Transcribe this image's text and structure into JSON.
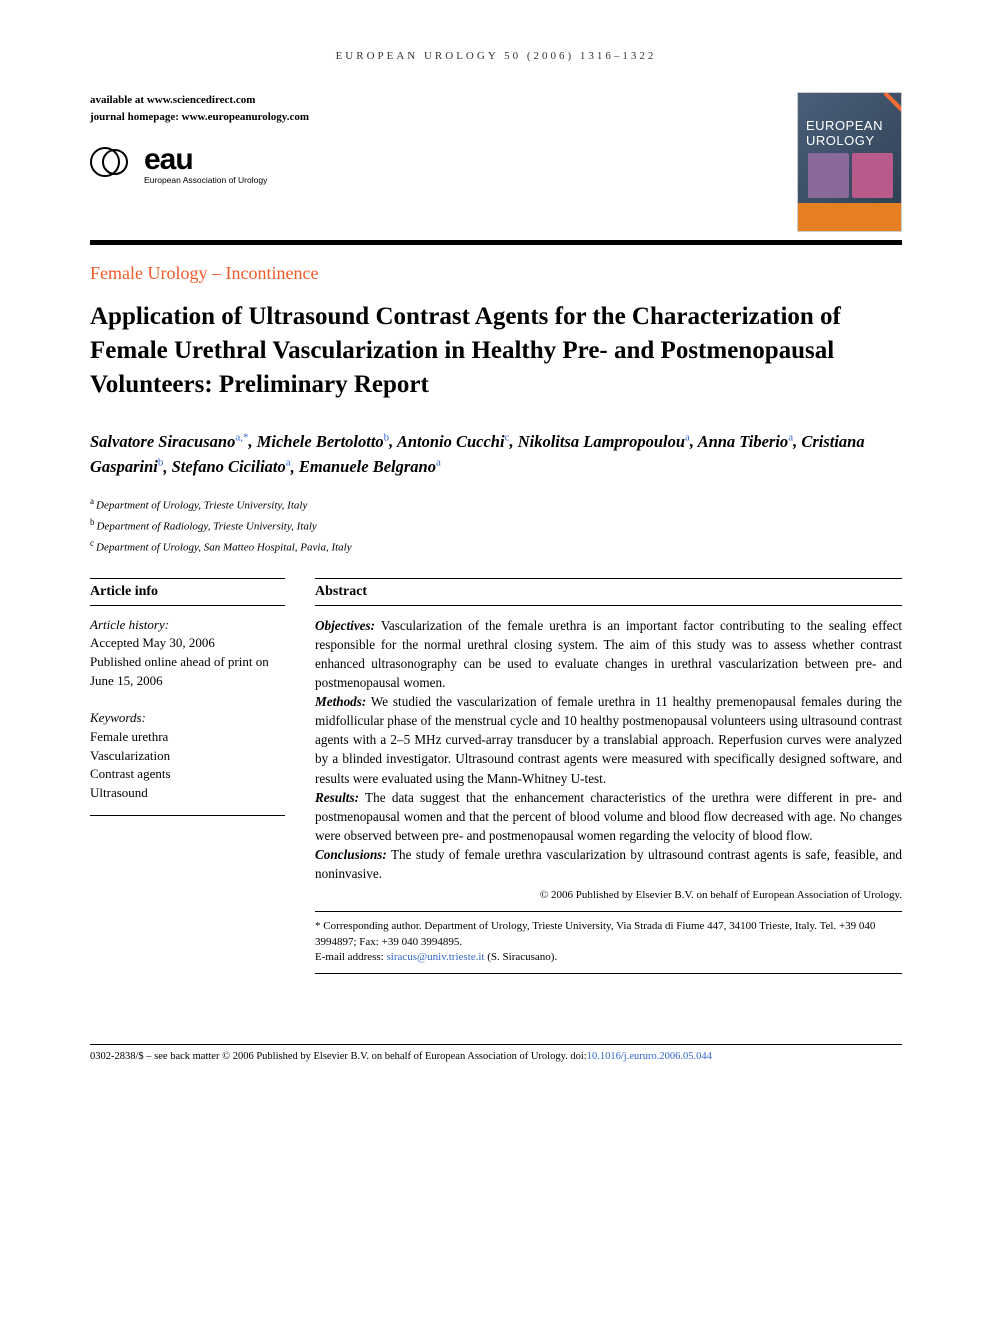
{
  "header": {
    "citation": "EUROPEAN UROLOGY 50 (2006) 1316–1322",
    "available_at": "available at www.sciencedirect.com",
    "journal_homepage": "journal homepage: www.europeanurology.com",
    "cover_title": "EUROPEAN UROLOGY",
    "eau_abbrev": "eau",
    "eau_full": "European Association of Urology"
  },
  "section_label": "Female Urology – Incontinence",
  "title": "Application of Ultrasound Contrast Agents for the Characterization of Female Urethral Vascularization in Healthy Pre- and Postmenopausal Volunteers: Preliminary Report",
  "authors": [
    {
      "name": "Salvatore Siracusano",
      "aff": "a,*"
    },
    {
      "name": "Michele Bertolotto",
      "aff": "b"
    },
    {
      "name": "Antonio Cucchi",
      "aff": "c"
    },
    {
      "name": "Nikolitsa Lampropoulou",
      "aff": "a"
    },
    {
      "name": "Anna Tiberio",
      "aff": "a"
    },
    {
      "name": "Cristiana Gasparini",
      "aff": "b"
    },
    {
      "name": "Stefano Ciciliato",
      "aff": "a"
    },
    {
      "name": "Emanuele Belgrano",
      "aff": "a"
    }
  ],
  "affiliations": [
    {
      "key": "a",
      "text": "Department of Urology, Trieste University, Italy"
    },
    {
      "key": "b",
      "text": "Department of Radiology, Trieste University, Italy"
    },
    {
      "key": "c",
      "text": "Department of Urology, San Matteo Hospital, Pavia, Italy"
    }
  ],
  "article_info": {
    "heading": "Article info",
    "history_label": "Article history:",
    "accepted": "Accepted May 30, 2006",
    "published": "Published online ahead of print on June 15, 2006",
    "keywords_label": "Keywords:",
    "keywords": [
      "Female urethra",
      "Vascularization",
      "Contrast agents",
      "Ultrasound"
    ]
  },
  "abstract": {
    "heading": "Abstract",
    "objectives_label": "Objectives:",
    "objectives": "Vascularization of the female urethra is an important factor contributing to the sealing effect responsible for the normal urethral closing system. The aim of this study was to assess whether contrast enhanced ultrasonography can be used to evaluate changes in urethral vascularization between pre- and postmenopausal women.",
    "methods_label": "Methods:",
    "methods": "We studied the vascularization of female urethra in 11 healthy premenopausal females during the midfollicular phase of the menstrual cycle and 10 healthy postmenopausal volunteers using ultrasound contrast agents with a 2–5 MHz curved-array transducer by a translabial approach. Reperfusion curves were analyzed by a blinded investigator. Ultrasound contrast agents were measured with specifically designed software, and results were evaluated using the Mann-Whitney U-test.",
    "results_label": "Results:",
    "results": "The data suggest that the enhancement characteristics of the urethra were different in pre- and postmenopausal women and that the percent of blood volume and blood flow decreased with age. No changes were observed between pre- and postmenopausal women regarding the velocity of blood flow.",
    "conclusions_label": "Conclusions:",
    "conclusions": "The study of female urethra vascularization by ultrasound contrast agents is safe, feasible, and noninvasive.",
    "copyright": "© 2006 Published by Elsevier B.V. on behalf of European Association of Urology."
  },
  "corresponding": {
    "text": "* Corresponding author. Department of Urology, Trieste University, Via Strada di Fiume 447, 34100 Trieste, Italy. Tel. +39 040 3994897; Fax: +39 040 3994895.",
    "email_label": "E-mail address: ",
    "email": "siracus@univ.trieste.it",
    "email_suffix": " (S. Siracusano)."
  },
  "footer": {
    "text": "0302-2838/$ – see back matter © 2006 Published by Elsevier B.V. on behalf of European Association of Urology.   doi:",
    "doi": "10.1016/j.eururo.2006.05.044"
  },
  "colors": {
    "accent_orange": "#f15a29",
    "link_blue": "#3366cc",
    "text": "#000000",
    "background": "#ffffff"
  },
  "typography": {
    "title_fontsize": 25,
    "body_fontsize": 13,
    "author_fontsize": 16.5,
    "footer_fontsize": 10.5
  }
}
